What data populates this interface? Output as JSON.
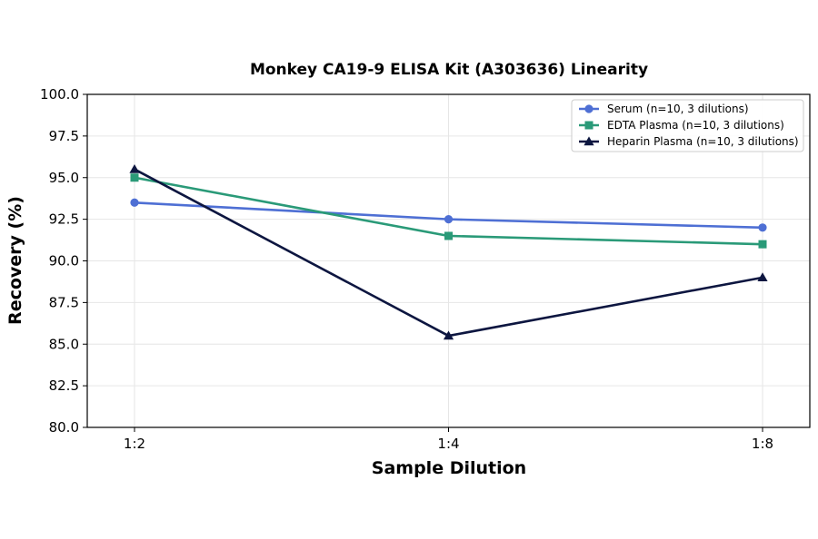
{
  "chart_data": {
    "type": "line",
    "title": "Monkey CA19-9 ELISA Kit (A303636) Linearity",
    "xlabel": "Sample Dilution",
    "ylabel": "Recovery (%)",
    "categories": [
      "1:2",
      "1:4",
      "1:8"
    ],
    "ylim": [
      80.0,
      100.0
    ],
    "yticks": [
      "80.0",
      "82.5",
      "85.0",
      "87.5",
      "90.0",
      "92.5",
      "95.0",
      "97.5",
      "100.0"
    ],
    "grid": true,
    "legend_position": "top-right",
    "series": [
      {
        "name": "Serum (n=10, 3 dilutions)",
        "values": [
          93.5,
          92.5,
          92.0
        ],
        "color": "#4e6fd4",
        "marker": "circle"
      },
      {
        "name": "EDTA Plasma (n=10, 3 dilutions)",
        "values": [
          95.0,
          91.5,
          91.0
        ],
        "color": "#2a9a78",
        "marker": "square"
      },
      {
        "name": "Heparin Plasma (n=10, 3 dilutions)",
        "values": [
          95.5,
          85.5,
          89.0
        ],
        "color": "#0d1640",
        "marker": "triangle"
      }
    ]
  }
}
